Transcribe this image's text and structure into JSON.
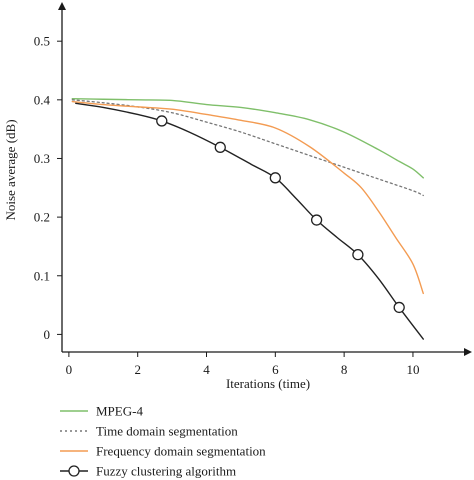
{
  "chart_data": {
    "type": "line",
    "xlabel": "Iterations (time)",
    "ylabel": "Noise average (dB)",
    "xlim": [
      -0.2,
      11.6
    ],
    "ylim": [
      -0.03,
      0.56
    ],
    "xticks": [
      "0",
      "2",
      "4",
      "6",
      "8",
      "10"
    ],
    "yticks": [
      "0",
      "0.1",
      "0.2",
      "0.3",
      "0.4",
      "0.5"
    ],
    "grid": false,
    "legend_position": "bottom-left",
    "series": [
      {
        "name": "MPEG-4",
        "color": "#7fbf6a",
        "style": "solid",
        "marker": "none",
        "x": [
          0.1,
          1.0,
          2.0,
          3.0,
          4.0,
          5.0,
          6.0,
          7.0,
          8.0,
          9.0,
          9.6,
          10.0,
          10.3
        ],
        "y": [
          0.402,
          0.401,
          0.4,
          0.399,
          0.392,
          0.387,
          0.378,
          0.366,
          0.345,
          0.315,
          0.295,
          0.282,
          0.267
        ]
      },
      {
        "name": "Time domain segmentation",
        "color": "#777777",
        "style": "dotted",
        "marker": "none",
        "x": [
          0.1,
          1.0,
          2.0,
          3.0,
          4.0,
          5.0,
          6.0,
          7.0,
          8.0,
          9.0,
          10.0,
          10.3
        ],
        "y": [
          0.4,
          0.395,
          0.388,
          0.378,
          0.362,
          0.345,
          0.325,
          0.305,
          0.285,
          0.265,
          0.245,
          0.237
        ]
      },
      {
        "name": "Frequency domain segmentation",
        "color": "#f39b52",
        "style": "solid",
        "marker": "none",
        "x": [
          0.1,
          1.0,
          2.0,
          3.0,
          4.0,
          5.0,
          6.0,
          7.0,
          8.0,
          8.5,
          9.0,
          9.5,
          10.0,
          10.3
        ],
        "y": [
          0.397,
          0.392,
          0.388,
          0.384,
          0.375,
          0.365,
          0.352,
          0.32,
          0.275,
          0.25,
          0.21,
          0.165,
          0.12,
          0.07
        ]
      },
      {
        "name": "Fuzzy clustering algorithm",
        "color": "#222222",
        "style": "solid",
        "marker": "circle",
        "x": [
          0.2,
          1.0,
          2.0,
          2.7,
          3.5,
          4.4,
          5.3,
          6.0,
          6.6,
          7.2,
          7.8,
          8.4,
          9.0,
          9.6,
          10.3
        ],
        "y": [
          0.394,
          0.387,
          0.375,
          0.364,
          0.345,
          0.319,
          0.29,
          0.267,
          0.232,
          0.195,
          0.165,
          0.136,
          0.095,
          0.046,
          -0.008
        ],
        "marker_indices": [
          3,
          5,
          7,
          9,
          11,
          13
        ]
      }
    ]
  }
}
